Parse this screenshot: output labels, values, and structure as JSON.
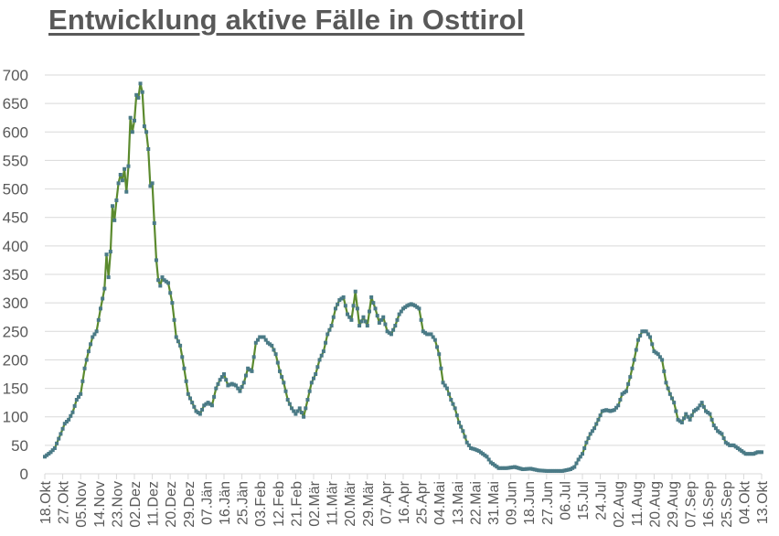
{
  "chart_data": {
    "type": "line",
    "title": "Entwicklung aktive Fälle in Osttirol",
    "xlabel": "",
    "ylabel": "",
    "ylim": [
      0,
      700
    ],
    "yticks": [
      0,
      50,
      100,
      150,
      200,
      250,
      300,
      350,
      400,
      450,
      500,
      550,
      600,
      650,
      700
    ],
    "grid": true,
    "legend": "none",
    "x_tick_interval_days": 9,
    "categories": [
      "18.Okt",
      "27.Okt",
      "05.Nov",
      "14.Nov",
      "23.Nov",
      "02.Dez",
      "11.Dez",
      "20.Dez",
      "29.Dez",
      "07.Jän",
      "16.Jän",
      "25.Jän",
      "03.Feb",
      "12.Feb",
      "21.Feb",
      "02.Mär",
      "11.Mär",
      "20.Mär",
      "29.Mär",
      "07.Apr",
      "16.Apr",
      "25.Apr",
      "04.Mai",
      "13.Mai",
      "22.Mai",
      "31.Mai",
      "09.Jun",
      "18.Jun",
      "27.Jun",
      "06.Jul",
      "15.Jul",
      "24.Jul",
      "02.Aug",
      "11.Aug",
      "20.Aug",
      "29.Aug",
      "07.Sep",
      "16.Sep",
      "25.Sep",
      "04.Okt",
      "13.Okt"
    ],
    "series": [
      {
        "name": "aktive Fälle",
        "line_color": "#5b8a2e",
        "marker_color": "#4a7a86",
        "x_days_since_18Okt": [
          0,
          3,
          5,
          8,
          10,
          12,
          14,
          16,
          18,
          20,
          22,
          24,
          26,
          28,
          30,
          31,
          32,
          33,
          34,
          35,
          36,
          37,
          38,
          39,
          40,
          41,
          42,
          43,
          44,
          45,
          46,
          47,
          48,
          49,
          50,
          51,
          52,
          53,
          54,
          55,
          56,
          57,
          58,
          59,
          60,
          62,
          64,
          66,
          68,
          70,
          72,
          74,
          76,
          78,
          80,
          82,
          84,
          86,
          88,
          90,
          92,
          94,
          96,
          98,
          100,
          102,
          104,
          106,
          108,
          110,
          112,
          114,
          116,
          118,
          120,
          122,
          124,
          126,
          128,
          130,
          132,
          134,
          136,
          138,
          140,
          142,
          144,
          146,
          148,
          150,
          152,
          154,
          156,
          158,
          160,
          162,
          164,
          166,
          168,
          170,
          172,
          174,
          176,
          178,
          180,
          182,
          184,
          186,
          188,
          190,
          192,
          194,
          196,
          198,
          200,
          202,
          204,
          206,
          208,
          210,
          212,
          214,
          216,
          218,
          220,
          222,
          224,
          226,
          228,
          232,
          236,
          240,
          244,
          248,
          252,
          256,
          260,
          264,
          266,
          268,
          270,
          272,
          274,
          276,
          278,
          280,
          282,
          284,
          286,
          288,
          290,
          292,
          294,
          296,
          298,
          300,
          302,
          304,
          306,
          308,
          310,
          312,
          314,
          316,
          318,
          320,
          322,
          324,
          326,
          328,
          330,
          332,
          334,
          336,
          338,
          340,
          342,
          344,
          346,
          348,
          350,
          352,
          354,
          356,
          358,
          360
        ],
        "values": [
          30,
          38,
          45,
          70,
          88,
          95,
          108,
          130,
          140,
          185,
          215,
          240,
          250,
          290,
          325,
          385,
          345,
          390,
          470,
          445,
          480,
          510,
          525,
          515,
          535,
          495,
          540,
          625,
          600,
          620,
          665,
          660,
          685,
          670,
          610,
          600,
          570,
          505,
          510,
          440,
          375,
          340,
          330,
          345,
          340,
          335,
          300,
          240,
          225,
          185,
          140,
          125,
          110,
          105,
          120,
          125,
          120,
          150,
          165,
          175,
          155,
          158,
          155,
          145,
          160,
          185,
          180,
          230,
          240,
          240,
          230,
          225,
          210,
          180,
          160,
          130,
          115,
          105,
          115,
          100,
          130,
          160,
          175,
          200,
          215,
          245,
          260,
          290,
          305,
          310,
          280,
          270,
          320,
          260,
          275,
          260,
          310,
          290,
          265,
          275,
          250,
          245,
          260,
          280,
          290,
          295,
          298,
          295,
          290,
          250,
          245,
          245,
          235,
          210,
          160,
          150,
          130,
          115,
          90,
          75,
          55,
          45,
          43,
          40,
          35,
          30,
          20,
          15,
          10,
          10,
          12,
          8,
          9,
          6,
          5,
          5,
          5,
          8,
          12,
          25,
          35,
          55,
          70,
          80,
          95,
          110,
          112,
          110,
          112,
          120,
          140,
          145,
          170,
          200,
          235,
          250,
          250,
          240,
          215,
          210,
          200,
          160,
          140,
          125,
          95,
          90,
          105,
          95,
          110,
          115,
          125,
          110,
          105,
          85,
          75,
          70,
          55,
          50,
          50,
          45,
          40,
          35,
          35,
          35,
          38,
          38
        ]
      }
    ]
  }
}
